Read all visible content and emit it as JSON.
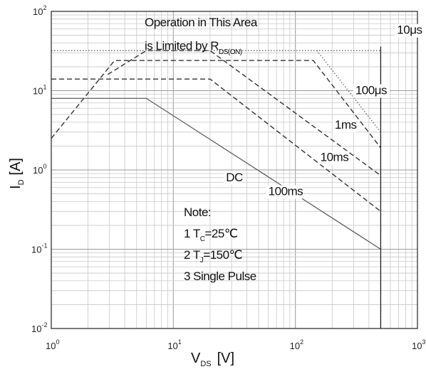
{
  "chart_data": {
    "type": "line",
    "x_scale": "log",
    "y_scale": "log",
    "xlim": [
      1,
      1000
    ],
    "ylim": [
      0.01,
      100
    ],
    "grid": true,
    "x_ticks": [
      {
        "base": "10",
        "exp": "0"
      },
      {
        "base": "10",
        "exp": "1"
      },
      {
        "base": "10",
        "exp": "2"
      },
      {
        "base": "10",
        "exp": "3"
      }
    ],
    "y_ticks": [
      {
        "base": "10",
        "exp": "-2"
      },
      {
        "base": "10",
        "exp": "-1"
      },
      {
        "base": "10",
        "exp": "0"
      },
      {
        "base": "10",
        "exp": "1"
      },
      {
        "base": "10",
        "exp": "2"
      }
    ],
    "xlabel": {
      "main": "V",
      "sub": "DS",
      "unit": "[V]"
    },
    "ylabel": {
      "main": "I",
      "sub": "D",
      "unit": "[A]"
    },
    "limit_text": {
      "line1": "Operation in This Area",
      "line2": "is Limited by R",
      "line2_sub": "DS(ON)"
    },
    "note": {
      "title": "Note:",
      "line1_prefix": "1 T",
      "line1_sub": "C",
      "line1_suffix": "=25℃",
      "line2_prefix": "2 T",
      "line2_sub": "J",
      "line2_suffix": "=150℃",
      "line3": "3 Single Pulse"
    },
    "vmax_x": 500,
    "series": [
      {
        "name": "10μs",
        "style": "dotted",
        "label_at": [
          680,
          52
        ],
        "x": [
          1,
          500,
          500
        ],
        "y": [
          32,
          32,
          0.01
        ]
      },
      {
        "name": "100μs",
        "style": "dotted",
        "label_at": [
          310,
          9
        ],
        "x": [
          150,
          500
        ],
        "y": [
          32,
          3
        ]
      },
      {
        "name": "1ms",
        "style": "dashed",
        "label_at": [
          210,
          3.3
        ],
        "x": [
          1,
          3.3,
          140,
          500
        ],
        "y": [
          2.5,
          24,
          24,
          1.9
        ]
      },
      {
        "name": "10ms",
        "style": "dashed",
        "label_at": [
          160,
          1.3
        ],
        "x": [
          2.9,
          6,
          20,
          500
        ],
        "y": [
          16,
          32,
          32,
          0.85
        ]
      },
      {
        "name": "100ms",
        "style": "dashed",
        "label_at": [
          60,
          0.48
        ],
        "x": [
          1,
          20,
          500
        ],
        "y": [
          14,
          14,
          0.3
        ]
      },
      {
        "name": "DC",
        "style": "solid",
        "label_at": [
          27,
          0.72
        ],
        "x": [
          1,
          6,
          500
        ],
        "y": [
          8,
          8,
          0.1
        ]
      }
    ]
  }
}
